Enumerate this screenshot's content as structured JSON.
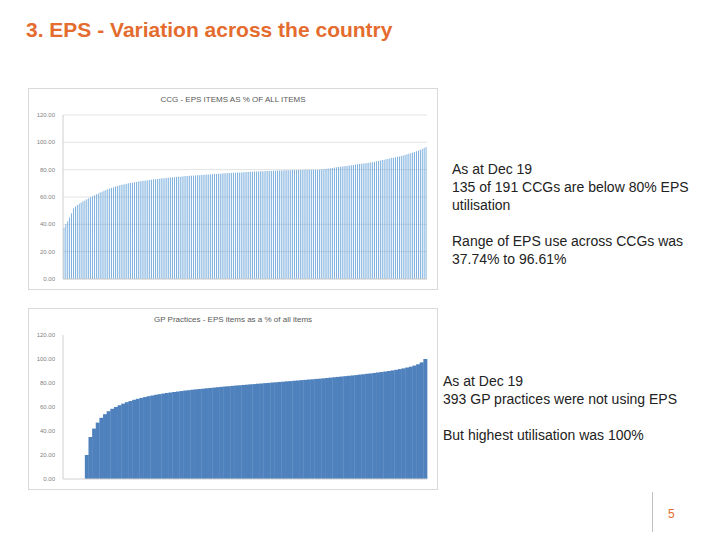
{
  "slide": {
    "title": "3. EPS - Variation across the country",
    "page": 5
  },
  "chart_data": [
    {
      "type": "bar",
      "title": "CCG - EPS ITEMS AS % OF ALL ITEMS",
      "color": "#5b9bd5",
      "grid": true,
      "ylim": [
        0,
        120
      ],
      "yticks": [
        {
          "value": 0,
          "label": "0.00"
        },
        {
          "value": 20,
          "label": "20.00"
        },
        {
          "value": 40,
          "label": "40.00"
        },
        {
          "value": 60,
          "label": "60.00"
        },
        {
          "value": 80,
          "label": "80.00"
        },
        {
          "value": 100,
          "label": "100.00"
        },
        {
          "value": 120,
          "label": "120.00"
        }
      ],
      "annotations": [
        [
          "As at Dec 19",
          "135 of 191 CCGs are below 80% EPS",
          "utilisation"
        ],
        [
          "Range of EPS use across CCGs was",
          "37.74% to 96.61%"
        ]
      ],
      "categories": [
        null,
        null,
        null,
        null,
        null,
        null,
        null,
        null,
        null,
        null,
        null,
        null,
        null,
        null,
        null,
        null,
        null,
        null,
        null,
        null,
        null,
        null,
        null,
        null,
        null,
        null,
        null,
        null,
        null,
        null,
        null,
        null,
        null,
        null,
        null,
        null,
        null,
        null,
        null,
        null,
        null,
        null,
        null,
        null,
        null,
        null,
        null,
        null,
        null,
        null,
        null,
        null,
        null,
        null,
        null,
        null,
        null,
        null,
        null,
        null,
        null,
        null,
        null,
        null,
        null,
        null,
        null,
        null,
        null,
        null,
        null,
        null,
        null,
        null,
        null,
        null,
        null,
        null,
        null,
        null,
        null,
        null,
        null,
        null,
        null,
        null,
        null,
        null,
        null,
        null,
        null,
        null,
        null,
        null,
        null,
        null,
        null,
        null,
        null,
        null,
        null,
        null,
        null,
        null,
        null,
        null,
        null,
        null,
        null,
        null,
        null,
        null,
        null,
        null,
        null,
        null,
        null,
        null,
        null,
        null,
        null,
        null,
        null,
        null,
        null,
        null,
        null,
        null,
        null,
        null,
        null,
        null,
        null,
        null,
        null,
        null,
        null,
        null,
        null,
        null,
        null,
        null,
        null,
        null,
        null,
        null,
        null,
        null,
        null,
        null,
        null,
        null,
        null,
        null,
        null,
        null,
        null,
        null,
        null,
        null,
        null,
        null,
        null,
        null,
        null,
        null,
        null,
        null,
        null,
        null,
        null,
        null,
        null,
        null,
        null,
        null,
        null,
        null,
        null,
        null,
        null,
        null,
        null,
        null,
        null,
        null,
        null,
        null,
        null,
        null,
        null
      ],
      "values": [
        37.74,
        40.1,
        42.3,
        45.0,
        48.2,
        51.5,
        53.0,
        54.2,
        55.1,
        56.0,
        56.8,
        57.5,
        58.3,
        59.0,
        59.8,
        60.5,
        61.2,
        62.0,
        62.6,
        63.3,
        63.9,
        64.5,
        65.1,
        65.6,
        66.2,
        66.7,
        67.2,
        67.6,
        68.0,
        68.4,
        68.8,
        69.1,
        69.4,
        69.7,
        70.0,
        70.3,
        70.5,
        70.8,
        71.0,
        71.3,
        71.5,
        71.7,
        71.9,
        72.1,
        72.3,
        72.5,
        72.7,
        72.9,
        73.0,
        73.2,
        73.4,
        73.5,
        73.7,
        73.8,
        74.0,
        74.1,
        74.3,
        74.4,
        74.5,
        74.7,
        74.8,
        74.9,
        75.0,
        75.2,
        75.3,
        75.4,
        75.5,
        75.6,
        75.7,
        75.8,
        75.9,
        76.0,
        76.1,
        76.2,
        76.3,
        76.4,
        76.5,
        76.6,
        76.7,
        76.8,
        76.9,
        77.0,
        77.1,
        77.2,
        77.3,
        77.4,
        77.5,
        77.6,
        77.6,
        77.7,
        77.8,
        77.9,
        78.0,
        78.0,
        78.1,
        78.2,
        78.3,
        78.3,
        78.4,
        78.5,
        78.6,
        78.6,
        78.7,
        78.8,
        78.8,
        78.9,
        79.0,
        79.0,
        79.1,
        79.1,
        79.2,
        79.2,
        79.3,
        79.3,
        79.4,
        79.4,
        79.5,
        79.5,
        79.6,
        79.6,
        79.7,
        79.7,
        79.7,
        79.8,
        79.8,
        79.8,
        79.9,
        79.9,
        79.9,
        79.9,
        79.92,
        79.94,
        79.96,
        79.97,
        79.98,
        80.1,
        80.3,
        80.5,
        80.7,
        80.9,
        81.1,
        81.3,
        81.5,
        81.7,
        81.9,
        82.1,
        82.3,
        82.5,
        82.7,
        82.9,
        83.1,
        83.3,
        83.5,
        83.7,
        83.9,
        84.1,
        84.3,
        84.5,
        84.7,
        84.9,
        85.1,
        85.3,
        85.5,
        85.8,
        86.1,
        86.4,
        86.7,
        87.0,
        87.3,
        87.6,
        87.9,
        88.2,
        88.5,
        88.8,
        89.1,
        89.4,
        89.7,
        90.0,
        90.4,
        90.8,
        91.2,
        91.6,
        92.0,
        92.5,
        93.0,
        93.5,
        94.0,
        94.6,
        95.2,
        95.9,
        96.61
      ]
    },
    {
      "type": "bar",
      "title": "GP Practices - EPS items as a % of all items",
      "color": "#4f81bd",
      "grid": false,
      "ylim": [
        0,
        120
      ],
      "yticks": [
        {
          "value": 0,
          "label": "0.00"
        },
        {
          "value": 20,
          "label": "20.00"
        },
        {
          "value": 40,
          "label": "40.00"
        },
        {
          "value": 60,
          "label": "60.00"
        },
        {
          "value": 80,
          "label": "80.00"
        },
        {
          "value": 100,
          "label": "100.00"
        },
        {
          "value": 120,
          "label": "120.00"
        }
      ],
      "annotations": [
        [
          "As at Dec 19",
          "393 GP practices were not using EPS"
        ],
        [
          "But highest utilisation was 100%"
        ]
      ],
      "categories": [
        null,
        null,
        null,
        null,
        null,
        null,
        null,
        null,
        null,
        null,
        null,
        null,
        null,
        null,
        null,
        null,
        null,
        null,
        null,
        null,
        null,
        null,
        null,
        null,
        null,
        null,
        null,
        null,
        null,
        null,
        null,
        null,
        null,
        null,
        null,
        null,
        null,
        null,
        null,
        null,
        null,
        null,
        null,
        null,
        null,
        null,
        null,
        null,
        null,
        null,
        null,
        null,
        null,
        null,
        null,
        null,
        null,
        null,
        null,
        null,
        null,
        null,
        null,
        null,
        null,
        null,
        null,
        null,
        null,
        null,
        null,
        null,
        null,
        null,
        null,
        null,
        null,
        null,
        null,
        null,
        null,
        null,
        null,
        null,
        null,
        null,
        null,
        null,
        null,
        null,
        null,
        null,
        null,
        null,
        null,
        null,
        null,
        null,
        null,
        null
      ],
      "values": [
        0,
        0,
        0,
        0,
        0,
        0,
        20,
        35,
        42,
        47,
        51,
        54,
        56.5,
        58.5,
        60,
        61.5,
        62.8,
        64,
        65,
        66,
        66.8,
        67.6,
        68.3,
        69,
        69.6,
        70.2,
        70.7,
        71.2,
        71.7,
        72.1,
        72.5,
        72.9,
        73.3,
        73.7,
        74,
        74.4,
        74.7,
        75,
        75.3,
        75.6,
        75.9,
        76.2,
        76.5,
        76.8,
        77.1,
        77.3,
        77.6,
        77.9,
        78.1,
        78.4,
        78.6,
        78.9,
        79.1,
        79.4,
        79.6,
        79.9,
        80.1,
        80.4,
        80.6,
        80.9,
        81.1,
        81.4,
        81.6,
        81.9,
        82.1,
        82.4,
        82.6,
        82.9,
        83.1,
        83.4,
        83.6,
        83.9,
        84.2,
        84.5,
        84.8,
        85.1,
        85.4,
        85.7,
        86.0,
        86.3,
        86.6,
        87.0,
        87.3,
        87.7,
        88.0,
        88.4,
        88.8,
        89.2,
        89.6,
        90.0,
        90.5,
        91.0,
        91.6,
        92.2,
        92.9,
        93.6,
        94.5,
        95.6,
        97.2,
        100
      ]
    }
  ]
}
